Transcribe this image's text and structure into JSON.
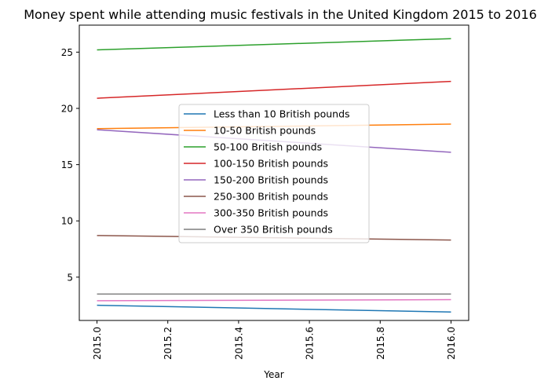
{
  "chart_data": {
    "type": "line",
    "title": "Money spent while attending music festivals in the United Kingdom 2015 to 2016",
    "xlabel": "Year",
    "ylabel": "",
    "x": [
      2015,
      2016
    ],
    "xlim": [
      2014.95,
      2016.05
    ],
    "ylim": [
      1.15,
      27.4
    ],
    "x_ticks": [
      2015.0,
      2015.2,
      2015.4,
      2015.6,
      2015.8,
      2016.0
    ],
    "x_tick_labels": [
      "2015.0",
      "2015.2",
      "2015.4",
      "2015.6",
      "2015.8",
      "2016.0"
    ],
    "y_ticks": [
      5,
      10,
      15,
      20,
      25
    ],
    "y_tick_labels": [
      "5",
      "10",
      "15",
      "20",
      "25"
    ],
    "grid": false,
    "legend_position": "center",
    "series": [
      {
        "name": "Less than 10 British pounds",
        "color": "#1f77b4",
        "values": [
          2.5,
          1.9
        ]
      },
      {
        "name": "10-50 British pounds",
        "color": "#ff7f0e",
        "values": [
          18.2,
          18.6
        ]
      },
      {
        "name": "50-100 British pounds",
        "color": "#2ca02c",
        "values": [
          25.2,
          26.2
        ]
      },
      {
        "name": "100-150 British pounds",
        "color": "#d62728",
        "values": [
          20.9,
          22.4
        ]
      },
      {
        "name": "150-200 British pounds",
        "color": "#9467bd",
        "values": [
          18.1,
          16.1
        ]
      },
      {
        "name": "250-300 British pounds",
        "color": "#8c564b",
        "values": [
          8.7,
          8.3
        ]
      },
      {
        "name": "300-350 British pounds",
        "color": "#e377c2",
        "values": [
          2.9,
          3.0
        ]
      },
      {
        "name": "Over 350 British pounds",
        "color": "#7f7f7f",
        "values": [
          3.5,
          3.5
        ]
      }
    ]
  }
}
